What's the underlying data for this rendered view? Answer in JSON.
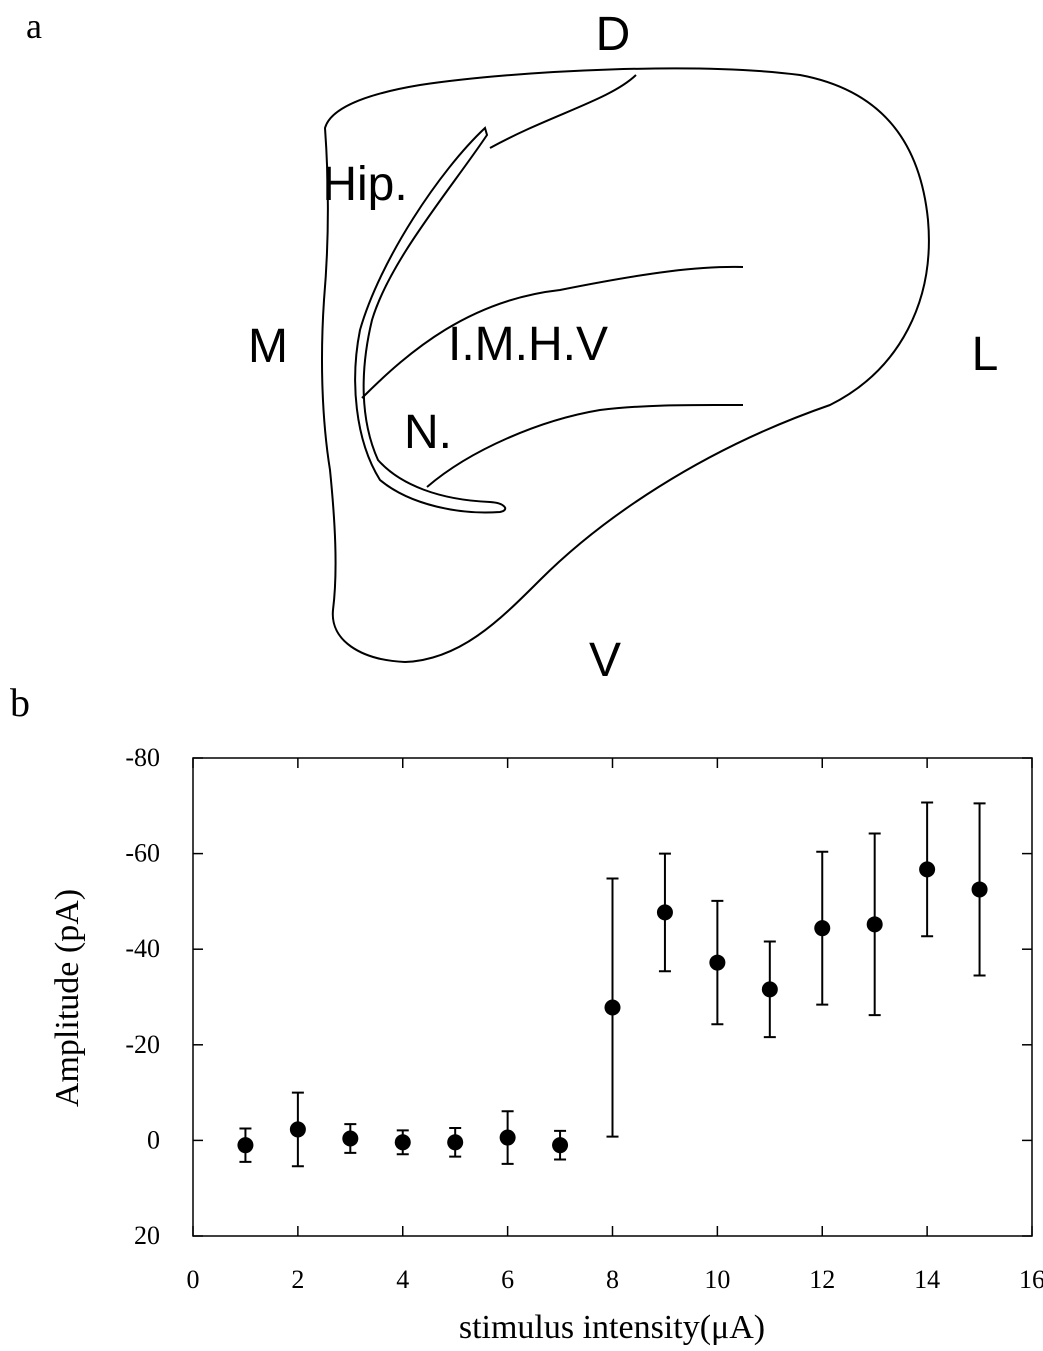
{
  "panels": [
    "a",
    "b"
  ],
  "diagram": {
    "labels": [
      "D",
      "Hip.",
      "M",
      "I.M.H.V",
      "L",
      "N.",
      "V"
    ]
  },
  "chart_data": {
    "type": "scatter",
    "x_label": "stimulus intensity(μA)",
    "y_label": "Amplitude (pA)",
    "x": [
      1,
      2,
      3,
      4,
      5,
      6,
      7,
      8,
      9,
      10,
      11,
      12,
      13,
      14,
      15
    ],
    "series": [
      {
        "color": "#000000",
        "values": [
          1,
          -2.3,
          -0.4,
          0.4,
          0.4,
          -0.6,
          1,
          -27.8,
          -47.7,
          -37.2,
          -31.6,
          -44.4,
          -45.2,
          -56.7,
          -52.5
        ],
        "errors": [
          3.5,
          7.7,
          3,
          2.5,
          3,
          5.5,
          3,
          27,
          12.3,
          12.9,
          10,
          16,
          19,
          14,
          18
        ]
      }
    ],
    "xlim": [
      0,
      16
    ],
    "xticks": [
      0,
      2,
      4,
      6,
      8,
      10,
      12,
      14,
      16
    ],
    "ylim": [
      20,
      -80
    ],
    "yticks": [
      20,
      0,
      -20,
      -40,
      -60,
      -80
    ]
  }
}
